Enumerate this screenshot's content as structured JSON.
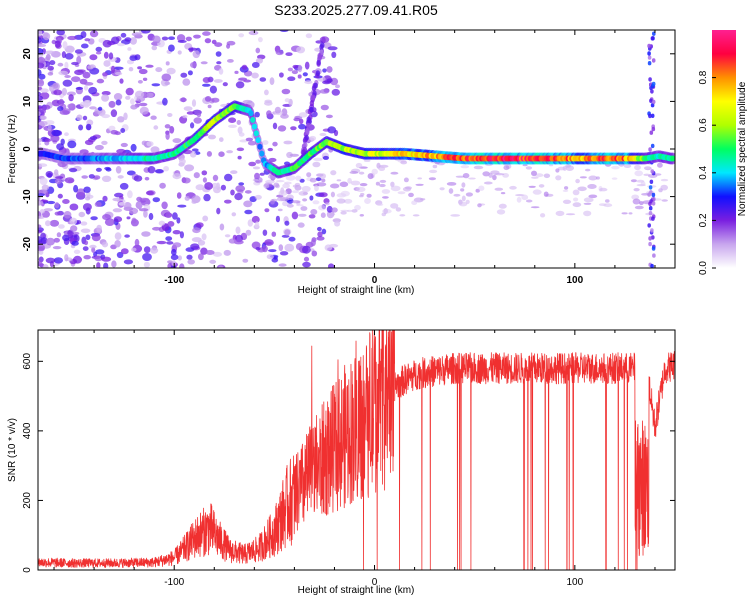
{
  "title": "S233.2025.277.09.41.R05",
  "chart_data": [
    {
      "type": "heatmap",
      "xlabel": "Height of straight line (km)",
      "ylabel": "Frequency (Hz)",
      "xlim": [
        -168,
        150
      ],
      "ylim": [
        -25,
        25
      ],
      "xticks": [
        -100,
        0,
        100
      ],
      "xtick_labels": [
        "-100",
        "0",
        "100"
      ],
      "yticks": [
        20,
        10,
        0,
        -10,
        -20
      ],
      "ytick_labels": [
        "20",
        "10",
        "0",
        "-10",
        "-20"
      ],
      "colorbar": {
        "label": "Normalized spectral amplitude",
        "range": [
          0,
          1
        ],
        "ticks": [
          0.0,
          0.2,
          0.4,
          0.6,
          0.8
        ],
        "tick_labels": [
          "0.0",
          "0.2",
          "0.4",
          "0.6",
          "0.8"
        ],
        "colors": [
          "#ffffff",
          "#c8a6ee",
          "#7a1fe0",
          "#1010ff",
          "#00e8ff",
          "#00ff60",
          "#b0ff00",
          "#ffff00",
          "#ff9000",
          "#ff0040",
          "#ff2090"
        ]
      },
      "ridge_trace": {
        "x": [
          -165,
          -155,
          -140,
          -125,
          -110,
          -100,
          -90,
          -80,
          -70,
          -62,
          -55,
          -48,
          -40,
          -32,
          -24,
          -15,
          -5,
          5,
          15,
          30,
          45,
          60,
          75,
          85,
          95,
          105,
          115,
          125,
          135,
          142,
          148
        ],
        "y": [
          -1,
          -2,
          -2,
          -2,
          -2,
          -1,
          2,
          6,
          9,
          8,
          -3,
          -5,
          -4,
          -1,
          1.5,
          0,
          -1,
          -1,
          -1,
          -1.5,
          -2,
          -2,
          -2,
          -2,
          -2,
          -2,
          -2,
          -2,
          -2,
          -1.5,
          -2
        ],
        "amplitude": [
          0.3,
          0.3,
          0.35,
          0.4,
          0.45,
          0.45,
          0.5,
          0.6,
          0.55,
          0.4,
          0.35,
          0.45,
          0.5,
          0.5,
          0.55,
          0.6,
          0.6,
          0.65,
          0.7,
          0.75,
          0.85,
          0.9,
          0.85,
          0.9,
          0.8,
          0.75,
          0.85,
          0.8,
          0.5,
          0.4,
          0.5
        ]
      }
    },
    {
      "type": "line",
      "xlabel": "Height of straight line (km)",
      "ylabel": "SNR (10 * v/v)",
      "xlim": [
        -168,
        150
      ],
      "ylim": [
        0,
        690
      ],
      "xticks": [
        -100,
        0,
        100
      ],
      "xtick_labels": [
        "-100",
        "0",
        "100"
      ],
      "yticks": [
        0,
        200,
        400,
        600
      ],
      "ytick_labels": [
        "0",
        "200",
        "400",
        "600"
      ],
      "series": [
        {
          "name": "SNR",
          "color": "#f03030",
          "x": [
            -168,
            -150,
            -130,
            -110,
            -100,
            -95,
            -88,
            -82,
            -78,
            -72,
            -65,
            -58,
            -50,
            -44,
            -38,
            -32,
            -26,
            -20,
            -14,
            -8,
            -2,
            4,
            10,
            16,
            22,
            28,
            34,
            40,
            50,
            60,
            70,
            80,
            90,
            100,
            110,
            120,
            130,
            136,
            140,
            145,
            150
          ],
          "y": [
            22,
            20,
            20,
            22,
            35,
            60,
            100,
            120,
            90,
            55,
            45,
            60,
            110,
            180,
            230,
            280,
            320,
            360,
            400,
            430,
            470,
            500,
            530,
            550,
            565,
            570,
            575,
            580,
            580,
            580,
            580,
            580,
            580,
            580,
            580,
            580,
            580,
            575,
            410,
            580,
            590
          ]
        }
      ]
    }
  ]
}
